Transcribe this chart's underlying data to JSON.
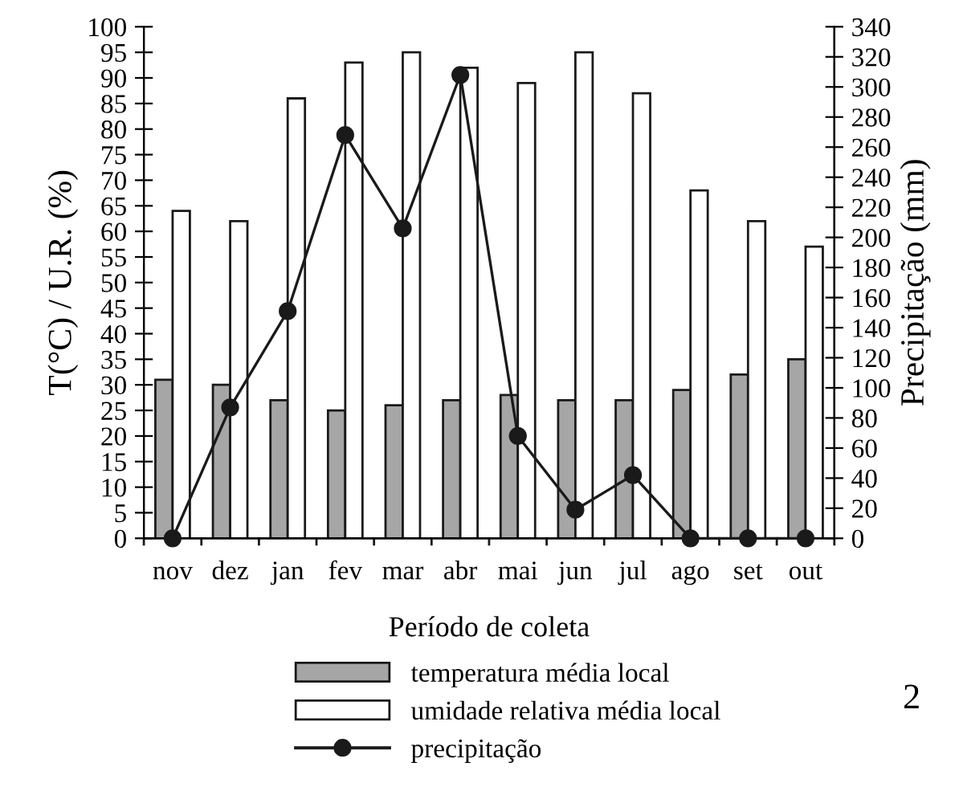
{
  "chart_data": {
    "type": "bar",
    "xlabel": "Período de coleta",
    "ylabel": "T(°C) / U.R. (%)",
    "y2label": "Precipitação (mm)",
    "categories": [
      "nov",
      "dez",
      "jan",
      "fev",
      "mar",
      "abr",
      "mai",
      "jun",
      "jul",
      "ago",
      "set",
      "out"
    ],
    "series": [
      {
        "name": "temperatura média local",
        "color": "#a6a6a6",
        "values": [
          31,
          30,
          27,
          25,
          26,
          27,
          28,
          27,
          27,
          29,
          32,
          35
        ]
      },
      {
        "name": "umidade relativa média local",
        "color": "#ffffff",
        "values": [
          64,
          62,
          86,
          93,
          95,
          92,
          89,
          95,
          87,
          68,
          62,
          57
        ]
      },
      {
        "name": "precipitação",
        "type": "line",
        "axis": "y2",
        "color": "#1a1a1a",
        "marker": "circle",
        "values": [
          0,
          87,
          151,
          268,
          206,
          308,
          68,
          19,
          42,
          0,
          0,
          0
        ]
      }
    ],
    "ylim": [
      0,
      100
    ],
    "yticks": [
      0,
      5,
      10,
      15,
      20,
      25,
      30,
      35,
      40,
      45,
      50,
      55,
      60,
      65,
      70,
      75,
      80,
      85,
      90,
      95,
      100
    ],
    "y2lim": [
      0,
      340
    ],
    "y2ticks": [
      0,
      20,
      40,
      60,
      80,
      100,
      120,
      140,
      160,
      180,
      200,
      220,
      240,
      260,
      280,
      300,
      320,
      340
    ],
    "legend": "bottom",
    "grid": false,
    "annotations": [
      "2"
    ]
  }
}
